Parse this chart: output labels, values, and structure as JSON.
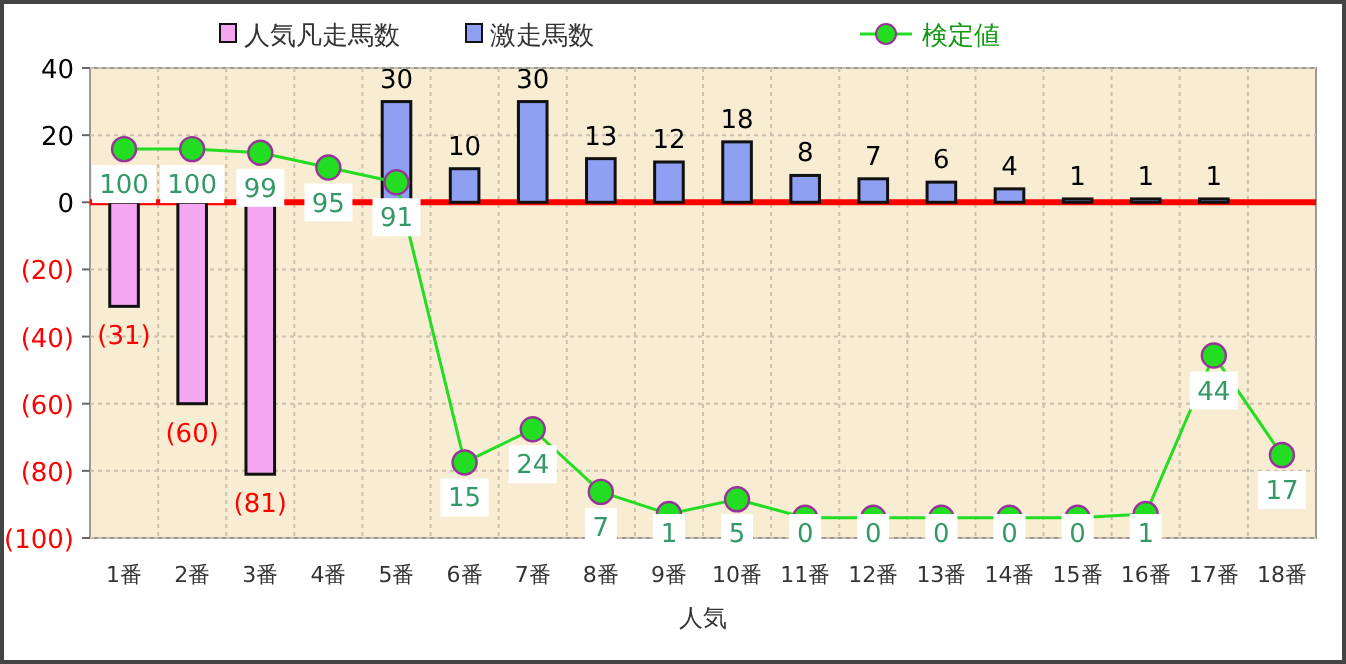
{
  "chart_data": {
    "type": "bar",
    "xlabel": "人気",
    "categories": [
      "1番",
      "2番",
      "3番",
      "4番",
      "5番",
      "6番",
      "7番",
      "8番",
      "9番",
      "10番",
      "11番",
      "12番",
      "13番",
      "14番",
      "15番",
      "16番",
      "17番",
      "18番"
    ],
    "series": [
      {
        "name": "人気凡走馬数",
        "color": "#f4a6f0",
        "values": [
          -31,
          -60,
          -81,
          null,
          null,
          null,
          null,
          null,
          null,
          null,
          null,
          null,
          null,
          null,
          null,
          null,
          null,
          null
        ],
        "value_labels": [
          "(31)",
          "(60)",
          "(81)",
          null,
          null,
          null,
          null,
          null,
          null,
          null,
          null,
          null,
          null,
          null,
          null,
          null,
          null,
          null
        ]
      },
      {
        "name": "激走馬数",
        "color": "#8f9ff2",
        "values": [
          null,
          null,
          null,
          null,
          30,
          10,
          30,
          13,
          12,
          18,
          8,
          7,
          6,
          4,
          1,
          1,
          1,
          null
        ],
        "value_labels": [
          null,
          null,
          null,
          null,
          "30",
          "10",
          "30",
          "13",
          "12",
          "18",
          "8",
          "7",
          "6",
          "4",
          "1",
          "1",
          "1",
          null
        ]
      },
      {
        "name": "検定値",
        "type": "line",
        "axis": "y2",
        "color": "#22dd22",
        "marker": "circle",
        "values": [
          100,
          100,
          99,
          95,
          91,
          15,
          24,
          7,
          1,
          5,
          0,
          0,
          0,
          0,
          0,
          1,
          44,
          17
        ],
        "value_labels": [
          "100",
          "100",
          "99",
          "95",
          "91",
          "15",
          "24",
          "7",
          "1",
          "5",
          "0",
          "0",
          "0",
          "0",
          "0",
          "1",
          "44",
          "17"
        ]
      }
    ],
    "ylim": [
      -100,
      40
    ],
    "yticks": [
      40,
      20,
      0,
      {
        "value": -20,
        "label": "(20)"
      },
      {
        "value": -40,
        "label": "(40)"
      },
      {
        "value": -60,
        "label": "(60)"
      },
      {
        "value": -80,
        "label": "(80)"
      },
      {
        "value": -100,
        "label": "(100)"
      }
    ],
    "y2lim": [
      -5.5,
      122
    ],
    "ref_lines": [
      {
        "axis": "y",
        "value": 0,
        "color": "#ff0000"
      }
    ],
    "grid": true,
    "legend": "top"
  }
}
